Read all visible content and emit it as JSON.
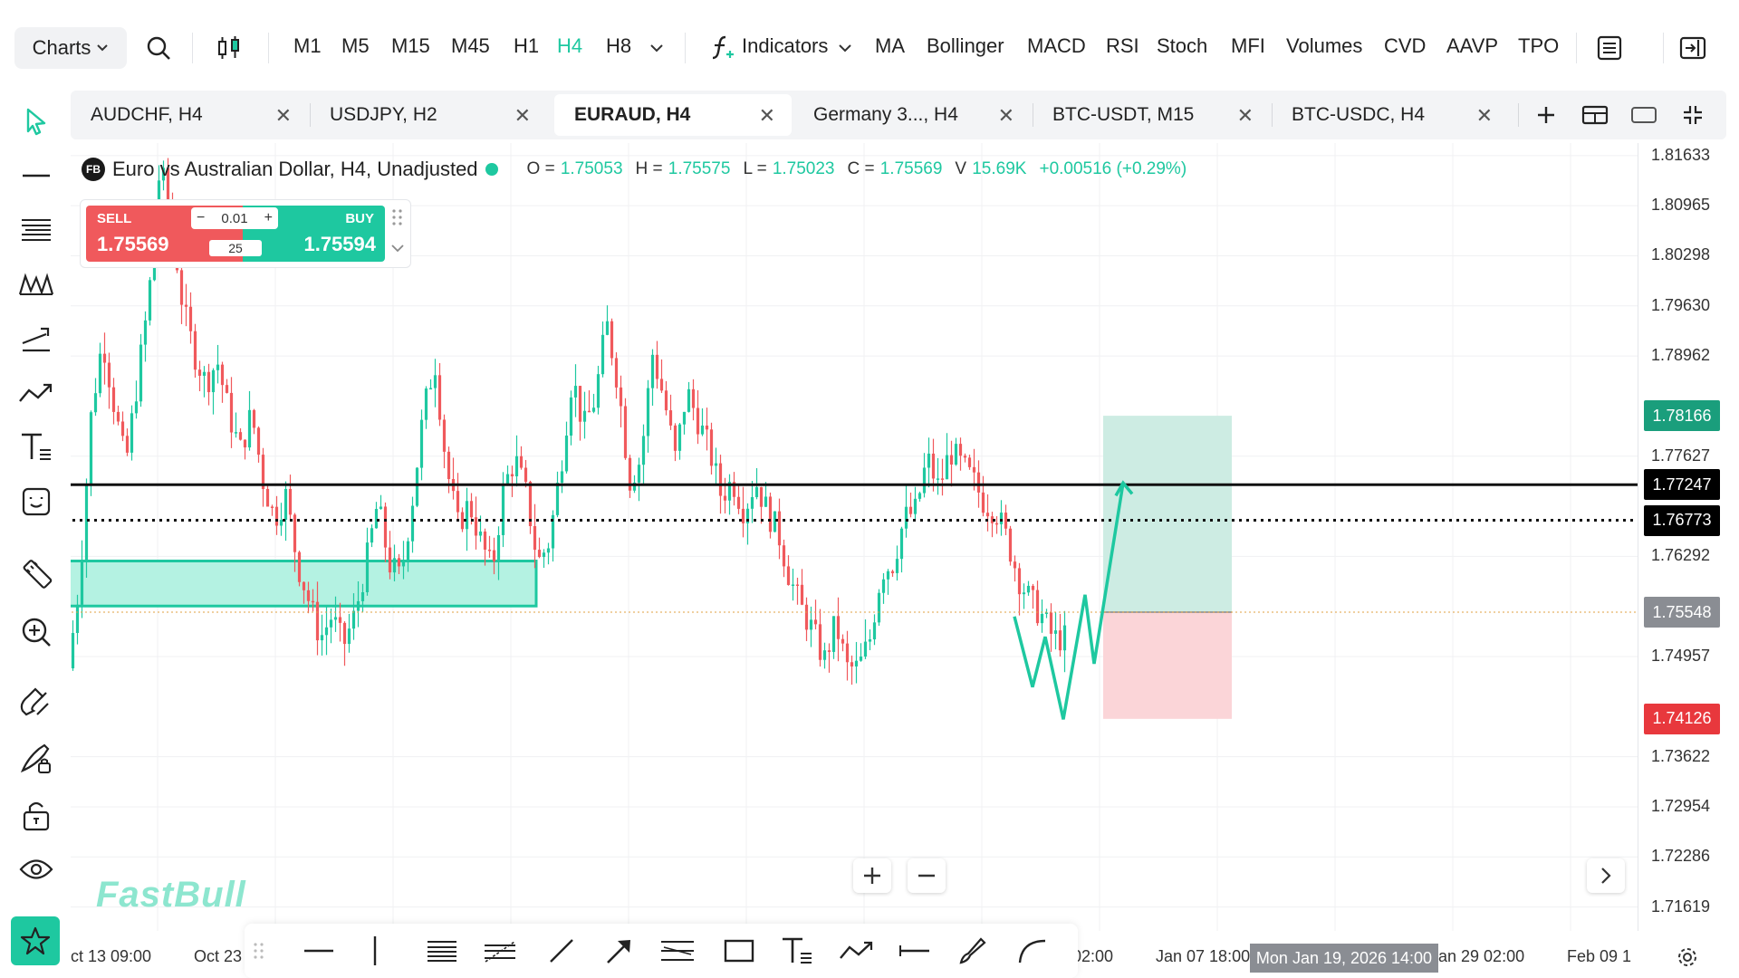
{
  "toolbar": {
    "charts_label": "Charts",
    "timeframes": [
      "M1",
      "M5",
      "M15",
      "M45",
      "H1",
      "H4",
      "H8"
    ],
    "active_timeframe": "H4",
    "indicators_label": "Indicators",
    "indicators": [
      "MA",
      "Bollinger",
      "MACD",
      "RSI",
      "Stoch",
      "MFI",
      "Volumes",
      "CVD",
      "AAVP",
      "TPO"
    ]
  },
  "tabs": [
    {
      "label": "AUDCHF, H4",
      "active": false
    },
    {
      "label": "USDJPY, H2",
      "active": false
    },
    {
      "label": "EURAUD, H4",
      "active": true
    },
    {
      "label": "Germany 3..., H4",
      "active": false
    },
    {
      "label": "BTC-USDT, M15",
      "active": false
    },
    {
      "label": "BTC-USDC, H4",
      "active": false
    }
  ],
  "legend": {
    "badge": "FB",
    "title": "Euro vs Australian Dollar, H4, Unadjusted",
    "o_label": "O =",
    "o": "1.75053",
    "h_label": "H =",
    "h": "1.75575",
    "l_label": "L =",
    "l": "1.75023",
    "c_label": "C =",
    "c": "1.75569",
    "v_label": "V",
    "v": "15.69K",
    "change": "+0.00516 (+0.29%)"
  },
  "trade": {
    "sell_label": "SELL",
    "sell_price": "1.75569",
    "buy_label": "BUY",
    "buy_price": "1.75594",
    "lot": "0.01",
    "spread": "25"
  },
  "price_axis": {
    "labels": [
      "1.81633",
      "1.80965",
      "1.80298",
      "1.79630",
      "1.78962",
      "1.77627",
      "1.76292",
      "1.74957",
      "1.73622",
      "1.72954",
      "1.72286",
      "1.71619"
    ],
    "tags": [
      {
        "value": "1.78166",
        "color": "#1a9e7c"
      },
      {
        "value": "1.77247",
        "color": "#000000"
      },
      {
        "value": "1.76773",
        "color": "#000000"
      },
      {
        "value": "1.75548",
        "color": "#8a8d93"
      },
      {
        "value": "1.74126",
        "color": "#e8383d"
      }
    ]
  },
  "time_axis": {
    "labels": [
      "ct 13 09:00",
      "Oct 23",
      "02:00",
      "Jan 07 18:00",
      "an 29 02:00",
      "Feb 09 1"
    ],
    "cursor": "Mon Jan 19, 2026 14:00"
  },
  "logo": "FastBull",
  "colors": {
    "accent": "#1ec8a0",
    "sell": "#f0595c",
    "bull_candle": "#1ec8a0",
    "bear_candle": "#f0595c",
    "zone": "#b4f2e2",
    "target": "#cdece3",
    "stop": "#fbd5d8"
  },
  "chart_data": {
    "type": "candlestick",
    "symbol": "EURAUD",
    "timeframe": "H4",
    "ylim": [
      1.713,
      1.818
    ],
    "path": [
      1.748,
      1.76,
      1.782,
      1.792,
      1.783,
      1.775,
      1.786,
      1.797,
      1.815,
      1.808,
      1.796,
      1.79,
      1.786,
      1.789,
      1.782,
      1.777,
      1.782,
      1.773,
      1.768,
      1.771,
      1.762,
      1.757,
      1.752,
      1.755,
      1.751,
      1.755,
      1.762,
      1.77,
      1.762,
      1.76,
      1.77,
      1.782,
      1.789,
      1.775,
      1.767,
      1.77,
      1.765,
      1.761,
      1.772,
      1.776,
      1.771,
      1.762,
      1.765,
      1.775,
      1.787,
      1.78,
      1.784,
      1.794,
      1.786,
      1.773,
      1.776,
      1.79,
      1.784,
      1.776,
      1.785,
      1.781,
      1.777,
      1.771,
      1.773,
      1.769,
      1.773,
      1.769,
      1.766,
      1.76,
      1.756,
      1.753,
      1.749,
      1.754,
      1.748,
      1.748,
      1.752,
      1.761,
      1.762,
      1.768,
      1.769,
      1.776,
      1.772,
      1.777,
      1.775,
      1.773,
      1.77,
      1.769,
      1.765,
      1.76,
      1.757,
      1.755,
      1.752,
      1.752
    ],
    "levels": {
      "resistance": 1.77247,
      "dotted": 1.76773,
      "current": 1.75548,
      "target": 1.78166,
      "stop": 1.74126
    },
    "zone": {
      "low": 1.7563,
      "high": 1.7623
    }
  }
}
